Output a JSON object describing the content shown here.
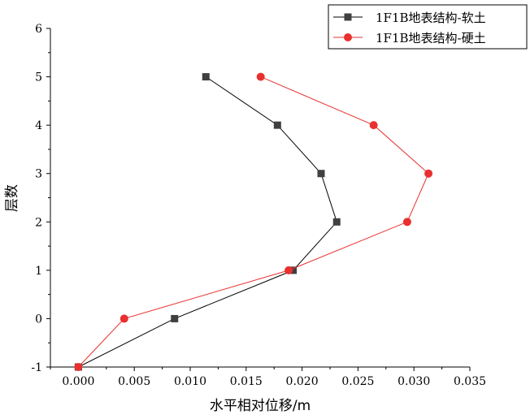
{
  "chart_data": {
    "type": "line",
    "xlabel": "水平相对位移/m",
    "ylabel": "层数",
    "xlim": [
      -0.0025,
      0.035
    ],
    "ylim": [
      -1,
      6
    ],
    "x_ticks": [
      "0.000",
      "0.005",
      "0.010",
      "0.015",
      "0.020",
      "0.025",
      "0.030",
      "0.035"
    ],
    "y_ticks": [
      "-1",
      "0",
      "1",
      "2",
      "3",
      "4",
      "5",
      "6"
    ],
    "legend_position": "top-right",
    "grid": false,
    "series": [
      {
        "name": "1F1B地表结构-软土",
        "color": "#000000",
        "marker_color": "#404040",
        "marker": "square",
        "points": [
          {
            "x": 0.0,
            "y": -1
          },
          {
            "x": 0.0086,
            "y": 0
          },
          {
            "x": 0.0192,
            "y": 1
          },
          {
            "x": 0.0231,
            "y": 2
          },
          {
            "x": 0.0217,
            "y": 3
          },
          {
            "x": 0.0178,
            "y": 4
          },
          {
            "x": 0.0114,
            "y": 5
          }
        ]
      },
      {
        "name": "1F1B地表结构-硬土",
        "color": "#e8302f",
        "marker_color": "#e8302f",
        "marker": "circle",
        "points": [
          {
            "x": 0.0,
            "y": -1
          },
          {
            "x": 0.0041,
            "y": 0
          },
          {
            "x": 0.0188,
            "y": 1
          },
          {
            "x": 0.0294,
            "y": 2
          },
          {
            "x": 0.0313,
            "y": 3
          },
          {
            "x": 0.0264,
            "y": 4
          },
          {
            "x": 0.0163,
            "y": 5
          }
        ]
      }
    ]
  }
}
